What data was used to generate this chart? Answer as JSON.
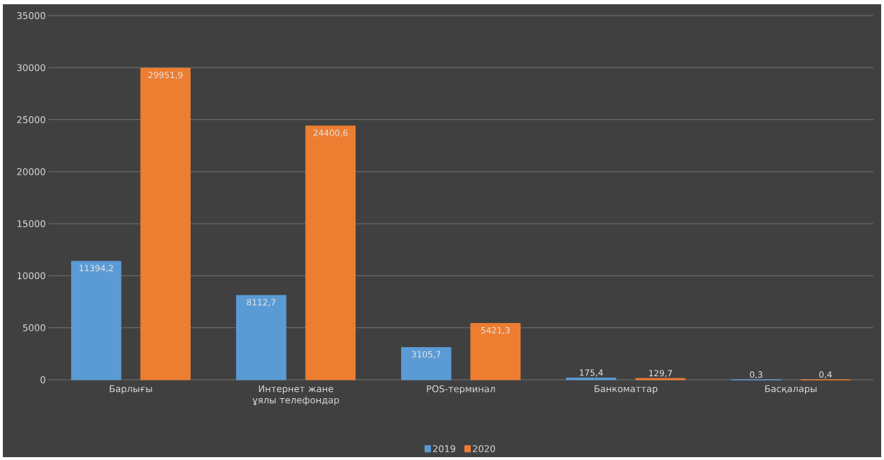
{
  "chart_data": {
    "type": "bar",
    "categories": [
      "Барлығы",
      "Интернет жане ұялы телефондар",
      "POS-терминал",
      "Банкоматтар",
      "Басқалары"
    ],
    "series": [
      {
        "name": "2019",
        "color": "#5b9bd5",
        "values": [
          11394.2,
          8112.7,
          3105.7,
          175.4,
          0.3
        ],
        "value_labels": [
          "11394,2",
          "8112,7",
          "3105,7",
          "175,4",
          "0,3"
        ]
      },
      {
        "name": "2020",
        "color": "#ed7d31",
        "values": [
          29951.9,
          24400.6,
          5421.3,
          129.7,
          0.4
        ],
        "value_labels": [
          "29951,9",
          "24400,6",
          "5421,3",
          "129,7",
          "0,4"
        ]
      }
    ],
    "ylim": [
      0,
      35000
    ],
    "yticks": [
      0,
      5000,
      10000,
      15000,
      20000,
      25000,
      30000,
      35000
    ],
    "grid": "y",
    "legend": "bottom"
  }
}
